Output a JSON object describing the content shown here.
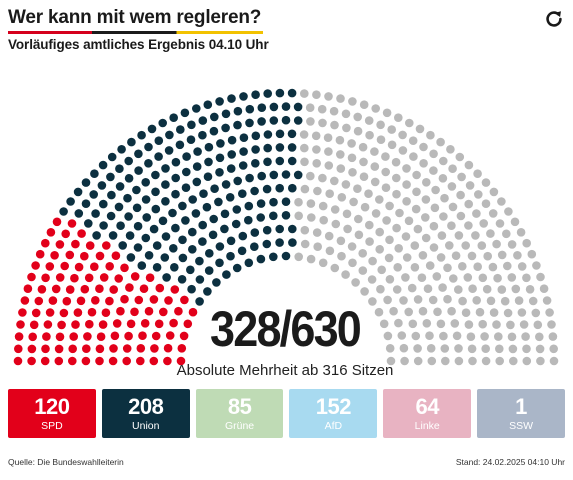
{
  "header": {
    "title": "Wer kann mit wem regleren?",
    "subtitle": "Vorläufiges amtliches Ergebnis 04.10 Uhr",
    "refresh_icon": "refresh-icon"
  },
  "chart_data": {
    "type": "parliament",
    "total_seats": 630,
    "selected_seats": 328,
    "center_label": "328/630",
    "majority_label": "Absolute Mehrheit ab 316 Sitzen",
    "majority": 316,
    "series": [
      {
        "name": "SPD",
        "seats": 120,
        "color": "#e2001a",
        "selected": true
      },
      {
        "name": "Union",
        "seats": 208,
        "color": "#0c3040",
        "selected": true
      },
      {
        "name": "Grüne",
        "seats": 85,
        "color": "#bfdbb5",
        "selected": false
      },
      {
        "name": "AfD",
        "seats": 152,
        "color": "#a8daf0",
        "selected": false
      },
      {
        "name": "Linke",
        "seats": 64,
        "color": "#e8b3c2",
        "selected": false
      },
      {
        "name": "SSW",
        "seats": 1,
        "color": "#aab6c8",
        "selected": false
      }
    ],
    "unselected_color": "#b9b9b9"
  },
  "footer": {
    "source": "Quelle: Die Bundeswahlleiterin",
    "timestamp": "Stand: 24.02.2025 04:10 Uhr"
  }
}
